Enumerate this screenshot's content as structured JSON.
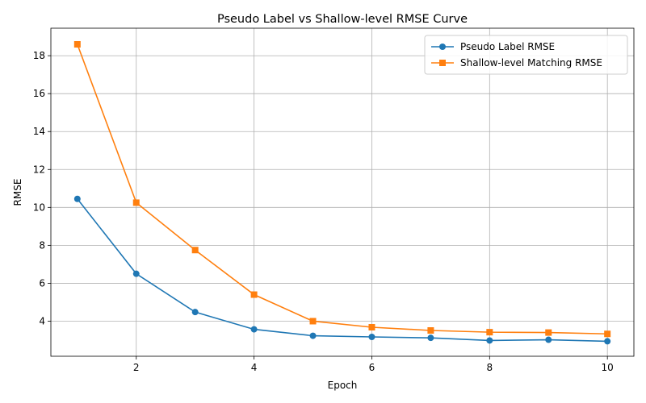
{
  "chart_data": {
    "type": "line",
    "title": "Pseudo Label vs Shallow-level RMSE Curve",
    "xlabel": "Epoch",
    "ylabel": "RMSE",
    "xlim": [
      0.55,
      10.45
    ],
    "ylim": [
      2.15,
      19.45
    ],
    "xticks": [
      2,
      4,
      6,
      8,
      10
    ],
    "yticks": [
      4,
      6,
      8,
      10,
      12,
      14,
      16,
      18
    ],
    "grid": true,
    "legend_position": "top-right",
    "x": [
      1,
      2,
      3,
      4,
      5,
      6,
      7,
      8,
      9,
      10
    ],
    "series": [
      {
        "name": "Pseudo Label RMSE",
        "color": "#1f77b4",
        "marker": "circle",
        "values": [
          10.45,
          6.5,
          4.48,
          3.57,
          3.23,
          3.17,
          3.12,
          2.98,
          3.02,
          2.94
        ]
      },
      {
        "name": "Shallow-level Matching RMSE",
        "color": "#ff7f0e",
        "marker": "square",
        "values": [
          18.6,
          10.25,
          7.75,
          5.4,
          4.0,
          3.68,
          3.51,
          3.42,
          3.4,
          3.33
        ]
      }
    ]
  }
}
